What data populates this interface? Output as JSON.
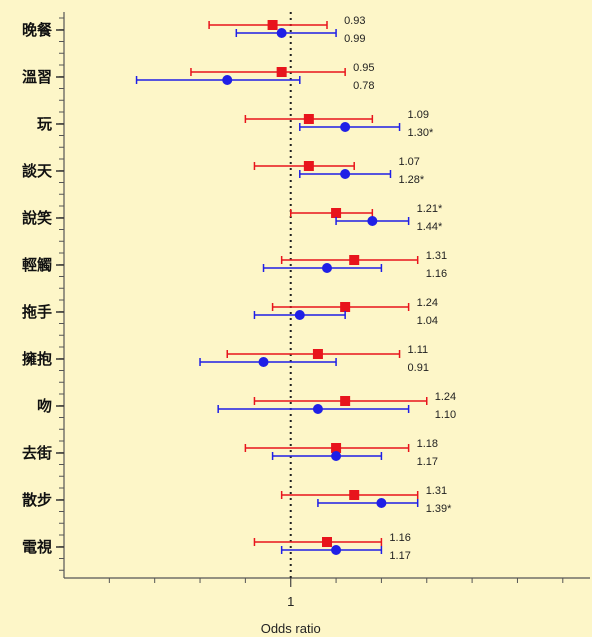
{
  "chart_data": {
    "type": "forest",
    "xlabel": "Odds ratio",
    "x_ticks": [
      "1"
    ],
    "reference_line": 1,
    "xlim": [
      0.75,
      1.33
    ],
    "grid": false,
    "series": [
      {
        "key": "red",
        "color": "#e8141c",
        "marker": "square"
      },
      {
        "key": "blue",
        "color": "#1f1fe6",
        "marker": "circle"
      }
    ],
    "rows": [
      {
        "label": "晚餐",
        "red": {
          "or": 0.98,
          "lo": 0.91,
          "hi": 1.04
        },
        "blue": {
          "or": 0.99,
          "lo": 0.94,
          "hi": 1.05
        },
        "red_text": "0.93",
        "blue_text": "0.99"
      },
      {
        "label": "溫習",
        "red": {
          "or": 0.99,
          "lo": 0.89,
          "hi": 1.06
        },
        "blue": {
          "or": 0.93,
          "lo": 0.83,
          "hi": 1.01
        },
        "red_text": "0.95",
        "blue_text": "0.78"
      },
      {
        "label": "玩",
        "red": {
          "or": 1.02,
          "lo": 0.95,
          "hi": 1.09
        },
        "blue": {
          "or": 1.06,
          "lo": 1.01,
          "hi": 1.12
        },
        "red_text": "1.09",
        "blue_text": "1.30*"
      },
      {
        "label": "談天",
        "red": {
          "or": 1.02,
          "lo": 0.96,
          "hi": 1.07
        },
        "blue": {
          "or": 1.06,
          "lo": 1.01,
          "hi": 1.11
        },
        "red_text": "1.07",
        "blue_text": "1.28*"
      },
      {
        "label": "說笑",
        "red": {
          "or": 1.05,
          "lo": 1.0,
          "hi": 1.09
        },
        "blue": {
          "or": 1.09,
          "lo": 1.05,
          "hi": 1.13
        },
        "red_text": "1.21*",
        "blue_text": "1.44*"
      },
      {
        "label": "輕觸",
        "red": {
          "or": 1.07,
          "lo": 0.99,
          "hi": 1.14
        },
        "blue": {
          "or": 1.04,
          "lo": 0.97,
          "hi": 1.1
        },
        "red_text": "1.31",
        "blue_text": "1.16"
      },
      {
        "label": "拖手",
        "red": {
          "or": 1.06,
          "lo": 0.98,
          "hi": 1.13
        },
        "blue": {
          "or": 1.01,
          "lo": 0.96,
          "hi": 1.06
        },
        "red_text": "1.24",
        "blue_text": "1.04"
      },
      {
        "label": "擁抱",
        "red": {
          "or": 1.03,
          "lo": 0.93,
          "hi": 1.12
        },
        "blue": {
          "or": 0.97,
          "lo": 0.9,
          "hi": 1.05
        },
        "red_text": "1.11",
        "blue_text": "0.91"
      },
      {
        "label": "吻",
        "red": {
          "or": 1.06,
          "lo": 0.96,
          "hi": 1.15
        },
        "blue": {
          "or": 1.03,
          "lo": 0.92,
          "hi": 1.13
        },
        "red_text": "1.24",
        "blue_text": "1.10"
      },
      {
        "label": "去街",
        "red": {
          "or": 1.05,
          "lo": 0.95,
          "hi": 1.13
        },
        "blue": {
          "or": 1.05,
          "lo": 0.98,
          "hi": 1.1
        },
        "red_text": "1.18",
        "blue_text": "1.17"
      },
      {
        "label": "散步",
        "red": {
          "or": 1.07,
          "lo": 0.99,
          "hi": 1.14
        },
        "blue": {
          "or": 1.1,
          "lo": 1.03,
          "hi": 1.14
        },
        "red_text": "1.31",
        "blue_text": "1.39*"
      },
      {
        "label": "電視",
        "red": {
          "or": 1.04,
          "lo": 0.96,
          "hi": 1.1
        },
        "blue": {
          "or": 1.05,
          "lo": 0.99,
          "hi": 1.1
        },
        "red_text": "1.16",
        "blue_text": "1.17"
      }
    ]
  }
}
